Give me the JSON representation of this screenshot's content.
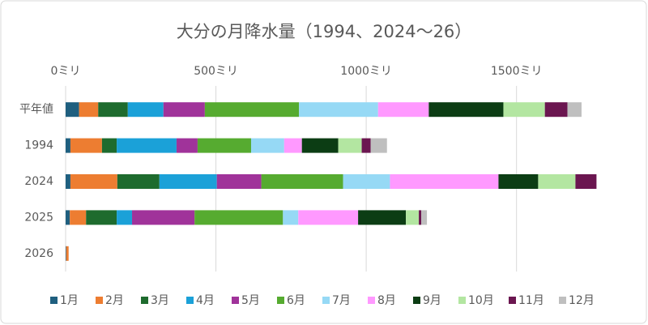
{
  "chart_data": {
    "type": "stacked-bar-horizontal",
    "title": "大分の月降水量（1994、2024～26）",
    "categories": [
      "平年値",
      "1994",
      "2024",
      "2025",
      "2026"
    ],
    "series": [
      {
        "name": "1月",
        "color": "#1f5f7f",
        "values": [
          44.7,
          16,
          16,
          14,
          2
        ]
      },
      {
        "name": "2月",
        "color": "#ed7d31",
        "values": [
          63.7,
          105,
          156,
          54,
          8
        ]
      },
      {
        "name": "3月",
        "color": "#1e6b2e",
        "values": [
          98.5,
          49,
          140,
          102,
          null
        ]
      },
      {
        "name": "4月",
        "color": "#1ba1d8",
        "values": [
          118.5,
          199,
          191,
          51,
          null
        ]
      },
      {
        "name": "5月",
        "color": "#a0339a",
        "values": [
          137.7,
          70,
          148,
          208,
          null
        ]
      },
      {
        "name": "6月",
        "color": "#56ab30",
        "values": [
          313.3,
          178,
          272,
          294,
          null
        ]
      },
      {
        "name": "7月",
        "color": "#96d9f5",
        "values": [
          263.1,
          110,
          156,
          51,
          null
        ]
      },
      {
        "name": "8月",
        "color": "#ff99ff",
        "values": [
          168.6,
          59,
          361,
          199,
          null
        ]
      },
      {
        "name": "9月",
        "color": "#0c3d14",
        "values": [
          248.2,
          121,
          132,
          159,
          null
        ]
      },
      {
        "name": "10月",
        "color": "#b3e6a1",
        "values": [
          138.0,
          78,
          124,
          43,
          null
        ]
      },
      {
        "name": "11月",
        "color": "#6b1650",
        "values": [
          75.1,
          30,
          70,
          8,
          null
        ]
      },
      {
        "name": "12月",
        "color": "#bfbfbf",
        "values": [
          46.9,
          54,
          null,
          19,
          null
        ]
      }
    ],
    "xlim": [
      0,
      1870
    ],
    "xticks": [
      {
        "value": 0,
        "label": "0ミリ"
      },
      {
        "value": 500,
        "label": "500ミリ"
      },
      {
        "value": 1000,
        "label": "1000ミリ"
      },
      {
        "value": 1500,
        "label": "1500ミリ"
      }
    ],
    "grid": true,
    "legend": "bottom"
  }
}
